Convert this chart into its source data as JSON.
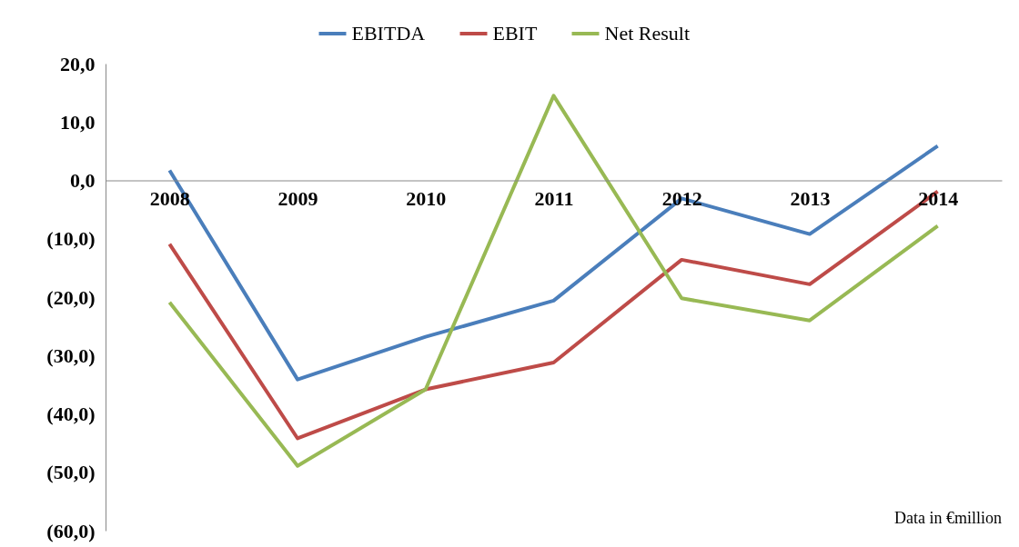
{
  "chart_data": {
    "type": "line",
    "categories": [
      "2008",
      "2009",
      "2010",
      "2011",
      "2012",
      "2013",
      "2014"
    ],
    "series": [
      {
        "name": "EBITDA",
        "color": "#4a7ebb",
        "values": [
          1.7,
          -34.1,
          -26.8,
          -20.6,
          -3.1,
          -9.2,
          5.9
        ]
      },
      {
        "name": "EBIT",
        "color": "#be4b48",
        "values": [
          -10.9,
          -44.2,
          -35.8,
          -31.2,
          -13.6,
          -17.8,
          -1.9
        ]
      },
      {
        "name": "Net Result",
        "color": "#98b954",
        "values": [
          -20.9,
          -48.9,
          -35.8,
          14.5,
          -20.2,
          -24.0,
          -7.8
        ]
      }
    ],
    "ylim": [
      -60,
      20
    ],
    "yticks": [
      {
        "value": -60,
        "label": "(60,0)"
      },
      {
        "value": -50,
        "label": "(50,0)"
      },
      {
        "value": -40,
        "label": "(40,0)"
      },
      {
        "value": -30,
        "label": "(30,0)"
      },
      {
        "value": -20,
        "label": "(20,0)"
      },
      {
        "value": -10,
        "label": "(10,0)"
      },
      {
        "value": 0,
        "label": "0,0"
      },
      {
        "value": 10,
        "label": "10,0"
      },
      {
        "value": 20,
        "label": "20,0"
      }
    ],
    "legend": "top",
    "annotations": [
      "Data in €million"
    ]
  }
}
